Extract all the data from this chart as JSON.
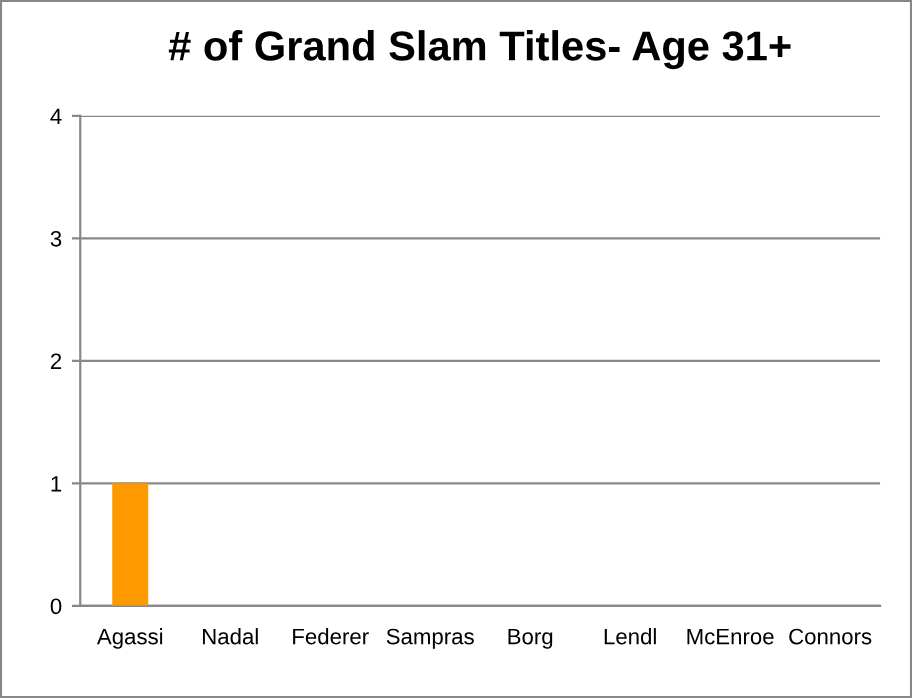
{
  "chart_data": {
    "type": "bar",
    "title": "# of Grand Slam Titles- Age 31+",
    "categories": [
      "Agassi",
      "Nadal",
      "Federer",
      "Sampras",
      "Borg",
      "Lendl",
      "McEnroe",
      "Connors"
    ],
    "values": [
      1,
      0,
      0,
      0,
      0,
      0,
      0,
      0
    ],
    "color": "#ff9900",
    "ylim": [
      0,
      4
    ],
    "yticks": [
      0,
      1,
      2,
      3,
      4
    ],
    "grid": "y"
  }
}
